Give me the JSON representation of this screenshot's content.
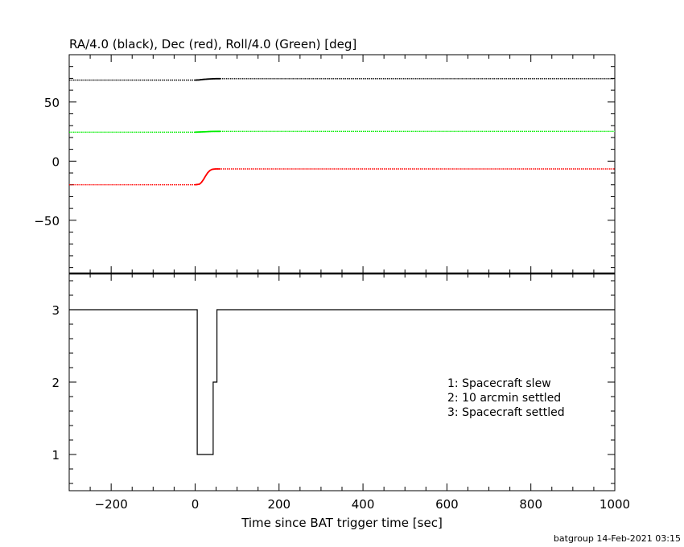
{
  "chart_data": [
    {
      "type": "line",
      "title": "RA/4.0 (black), Dec (red), Roll/4.0 (Green) [deg]",
      "xlim": [
        -300,
        1000
      ],
      "ylim": [
        -95,
        90
      ],
      "yticks": [
        -50,
        0,
        50
      ],
      "series": [
        {
          "name": "RA/4.0",
          "color": "#000000",
          "x": [
            -300,
            0,
            10,
            20,
            30,
            40,
            50,
            60,
            1000
          ],
          "y": [
            68.5,
            68.5,
            68.7,
            69.1,
            69.4,
            69.6,
            69.7,
            69.7,
            69.7
          ]
        },
        {
          "name": "Dec",
          "color": "#ff0000",
          "x": [
            -300,
            0,
            10,
            15,
            20,
            25,
            30,
            35,
            40,
            45,
            50,
            60,
            1000
          ],
          "y": [
            -20,
            -20,
            -19.5,
            -18,
            -15.5,
            -12.5,
            -9.8,
            -8,
            -7,
            -6.7,
            -6.6,
            -6.6,
            -6.6
          ]
        },
        {
          "name": "Roll/4.0",
          "color": "#00ee00",
          "x": [
            -300,
            0,
            20,
            40,
            60,
            1000
          ],
          "y": [
            24.5,
            24.5,
            24.8,
            25.1,
            25.2,
            25.2
          ]
        }
      ]
    },
    {
      "type": "line",
      "xlabel": "Time since BAT trigger time [sec]",
      "xlim": [
        -300,
        1000
      ],
      "ylim": [
        0.5,
        3.5
      ],
      "xticks": [
        -200,
        0,
        200,
        400,
        600,
        800,
        1000
      ],
      "yticks": [
        1,
        2,
        3
      ],
      "step": true,
      "series": [
        {
          "color": "#000000",
          "x": [
            -300,
            5,
            5,
            43,
            43,
            52,
            52,
            1000
          ],
          "y": [
            3,
            3,
            1,
            1,
            2,
            2,
            3,
            3
          ]
        }
      ],
      "legend_lines": [
        "1: Spacecraft slew",
        "2: 10 arcmin settled",
        "3: Spacecraft settled"
      ]
    }
  ],
  "footer": "batgroup 14-Feb-2021 03:15"
}
